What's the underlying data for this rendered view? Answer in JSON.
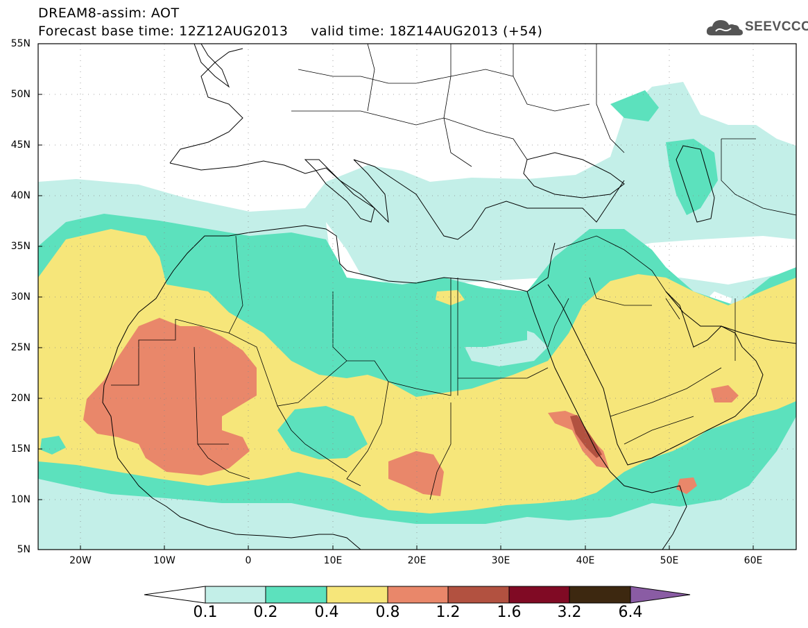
{
  "header": {
    "line1": "DREAM8-assim: AOT",
    "line2": "Forecast base time: 12Z12AUG2013     valid time: 18Z14AUG2013 (+54)"
  },
  "logo": {
    "text": "SEEVCCC",
    "icon": "cloud-icon"
  },
  "map": {
    "lat_labels": [
      "55N",
      "50N",
      "45N",
      "40N",
      "35N",
      "30N",
      "25N",
      "20N",
      "15N",
      "10N",
      "5N"
    ],
    "lon_labels": [
      "20W",
      "10W",
      "0",
      "10E",
      "20E",
      "30E",
      "40E",
      "50E",
      "60E"
    ]
  },
  "colorbar": {
    "labels": [
      "0.1",
      "0.2",
      "0.4",
      "0.8",
      "1.2",
      "1.6",
      "3.2",
      "6.4"
    ],
    "colors": [
      "#c3efe8",
      "#5ce1bd",
      "#f6e67a",
      "#e9876a",
      "#b25140",
      "#800a24",
      "#3d2810",
      "#8a5ca4"
    ]
  }
}
